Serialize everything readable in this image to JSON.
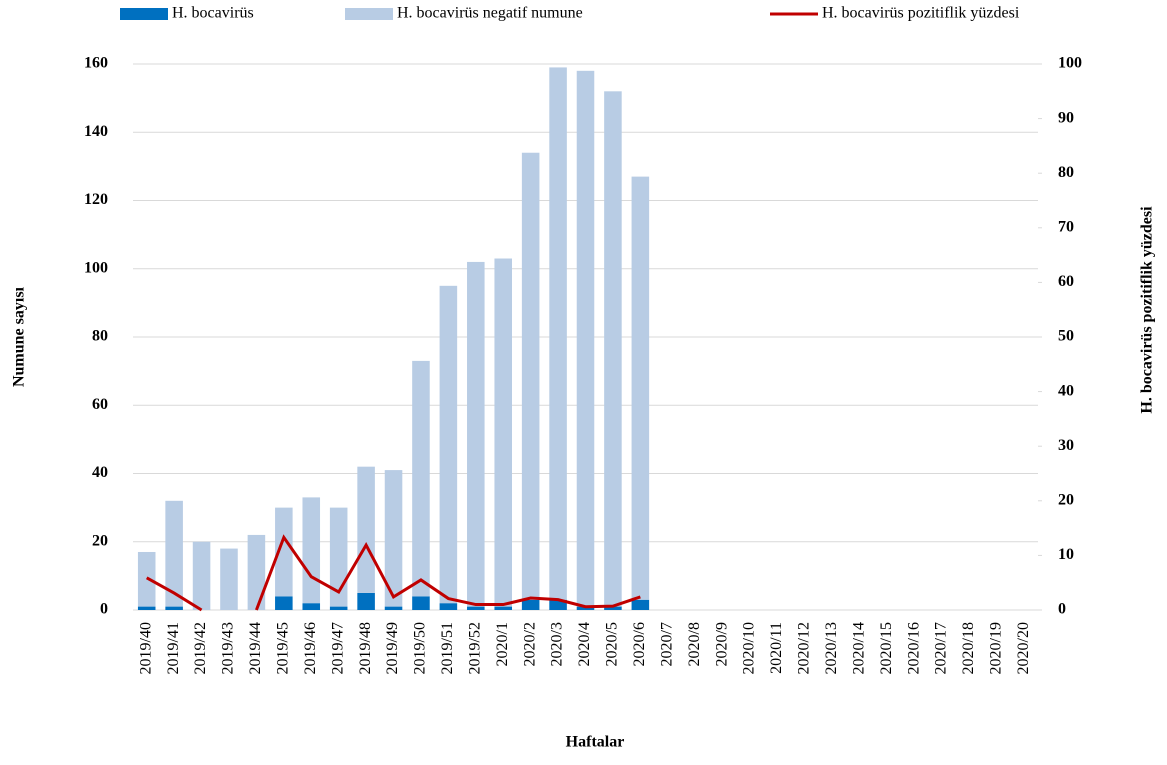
{
  "chart_data": {
    "type": "bar",
    "x_label": "Haftalar",
    "y_label": "Numune sayısı",
    "y2_label": "H. bocavirüs  pozitiflik  yüzdesi",
    "categories": [
      "2019/40",
      "2019/41",
      "2019/42",
      "2019/43",
      "2019/44",
      "2019/45",
      "2019/46",
      "2019/47",
      "2019/48",
      "2019/49",
      "2019/50",
      "2019/51",
      "2019/52",
      "2020/1",
      "2020/2",
      "2020/3",
      "2020/4",
      "2020/5",
      "2020/6",
      "2020/7",
      "2020/8",
      "2020/9",
      "2020/10",
      "2020/11",
      "2020/12",
      "2020/13",
      "2020/14",
      "2020/15",
      "2020/16",
      "2020/17",
      "2020/18",
      "2020/19",
      "2020/20"
    ],
    "series": [
      {
        "name": "H. bocavirüs",
        "color": "#0070c0",
        "stacked": true,
        "values": [
          1,
          1,
          0,
          0,
          0,
          4,
          2,
          1,
          5,
          1,
          4,
          2,
          1,
          1,
          3,
          3,
          1,
          1,
          3,
          null,
          null,
          null,
          null,
          null,
          null,
          null,
          null,
          null,
          null,
          null,
          null,
          null,
          null
        ]
      },
      {
        "name": "H. bocavirüs negatif numune",
        "color": "#b8cce4",
        "stacked": true,
        "values": [
          16,
          31,
          20,
          18,
          22,
          26,
          31,
          29,
          37,
          40,
          69,
          93,
          101,
          102,
          131,
          156,
          157,
          151,
          124,
          null,
          null,
          null,
          null,
          null,
          null,
          null,
          null,
          null,
          null,
          null,
          null,
          null,
          null
        ]
      },
      {
        "name": "H. bocavirüs pozitiflik  yüzdesi",
        "color": "#c00000",
        "type": "line",
        "axis": "y2",
        "values": [
          5.9,
          3.1,
          0,
          null,
          0,
          13.3,
          6.1,
          3.3,
          11.9,
          2.4,
          5.5,
          2.1,
          1,
          1,
          2.2,
          1.9,
          0.6,
          0.7,
          2.4,
          null,
          null,
          null,
          null,
          null,
          null,
          null,
          null,
          null,
          null,
          null,
          null,
          null,
          null
        ]
      }
    ],
    "ylim": [
      0,
      160
    ],
    "yticks": [
      0,
      20,
      40,
      60,
      80,
      100,
      120,
      140,
      160
    ],
    "y2lim": [
      0,
      100
    ],
    "y2ticks": [
      0,
      10,
      20,
      30,
      40,
      50,
      60,
      70,
      80,
      90,
      100
    ],
    "grid": true,
    "legend": "top"
  }
}
